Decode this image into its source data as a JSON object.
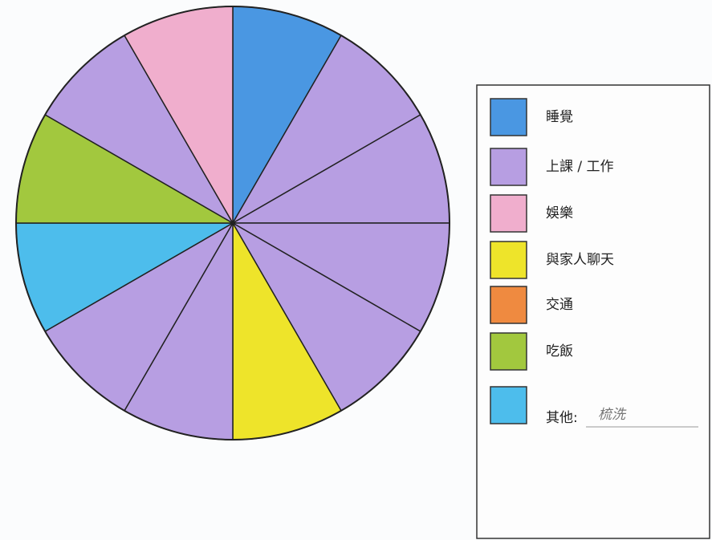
{
  "chart_data": {
    "type": "pie",
    "values": [
      1,
      1,
      1,
      1,
      1,
      1,
      1,
      1,
      1,
      1,
      1,
      1
    ],
    "colors": [
      "#4a97e2",
      "#b79ee2",
      "#b79ee2",
      "#b79ee2",
      "#b79ee2",
      "#eee42a",
      "#b79ee2",
      "#b79ee2",
      "#4dbdec",
      "#a2c83e",
      "#b79ee2",
      "#f0aecd"
    ],
    "legend": [
      {
        "label": "睡覺",
        "color": "#4a97e2"
      },
      {
        "label": "上課 / 工作",
        "color": "#b79ee2"
      },
      {
        "label": "娛樂",
        "color": "#f0aecd"
      },
      {
        "label": "與家人聊天",
        "color": "#eee42a"
      },
      {
        "label": "交通",
        "color": "#ef8a40"
      },
      {
        "label": "吃飯",
        "color": "#a2c83e"
      },
      {
        "label": "其他:",
        "note": "梳洗",
        "color": "#4dbdec"
      }
    ]
  }
}
